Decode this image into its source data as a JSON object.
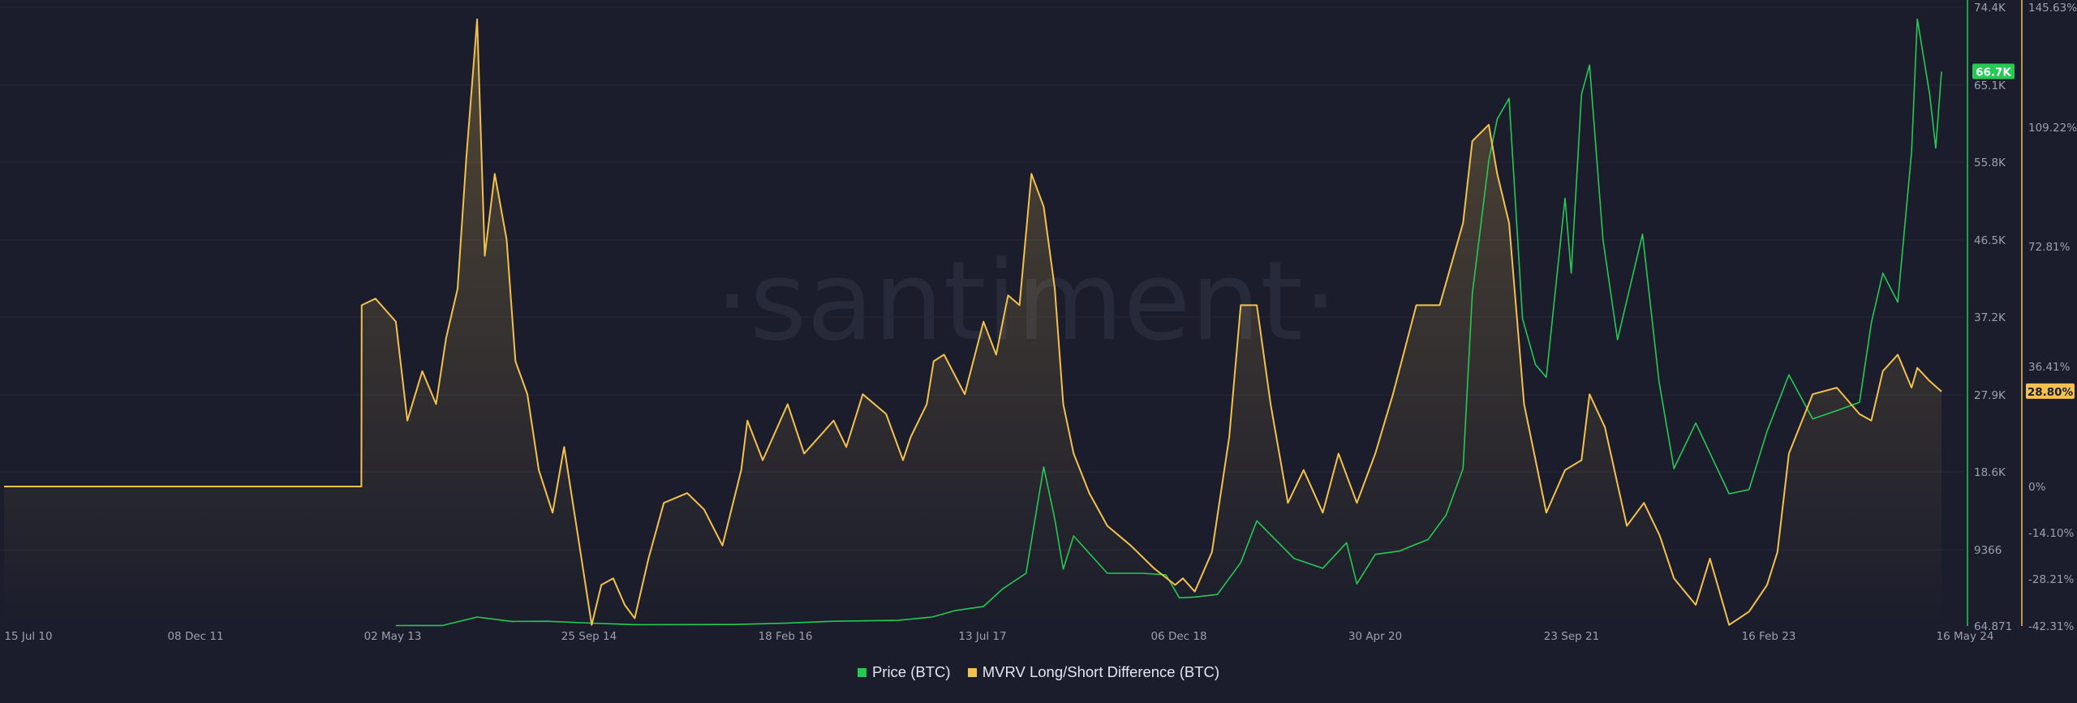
{
  "watermark": "·santiment·",
  "colors": {
    "price": "#26c953",
    "mvrv": "#f2c14e",
    "background": "#1b1d2c",
    "grid": "#252838",
    "price_badge_text": "#1b1d2c"
  },
  "badges": {
    "price": "66.7K",
    "mvrv": "28.80%"
  },
  "legend": [
    {
      "label": "Price (BTC)",
      "color": "#26c953"
    },
    {
      "label": "MVRV Long/Short Difference (BTC)",
      "color": "#f2c14e"
    }
  ],
  "chart_data": {
    "type": "line",
    "x_axis": {
      "ticks": [
        "15 Jul 10",
        "08 Dec 11",
        "02 May 13",
        "25 Sep 14",
        "18 Feb 16",
        "13 Jul 17",
        "06 Dec 18",
        "30 Apr 20",
        "23 Sep 21",
        "16 Feb 23",
        "16 May 24"
      ]
    },
    "y_axis_price": {
      "ticks": [
        "74.4K",
        "65.1K",
        "55.8K",
        "46.5K",
        "37.2K",
        "27.9K",
        "18.6K",
        "9366",
        "64.871"
      ],
      "min": 64.871,
      "max": 74400
    },
    "y_axis_mvrv": {
      "ticks": [
        "145.63%",
        "109.22%",
        "72.81%",
        "36.41%",
        "0%",
        "-14.10%",
        "-28.21%",
        "-42.31%"
      ]
    },
    "series": [
      {
        "name": "Price (BTC)",
        "axis": "price",
        "x": [
          "2013-05-02",
          "2013-09-01",
          "2013-11-30",
          "2014-03-01",
          "2014-06-01",
          "2014-09-25",
          "2015-01-15",
          "2015-06-01",
          "2015-10-01",
          "2016-02-18",
          "2016-06-15",
          "2016-12-01",
          "2017-03-01",
          "2017-05-01",
          "2017-07-13",
          "2017-09-01",
          "2017-11-01",
          "2017-12-17",
          "2018-01-15",
          "2018-02-06",
          "2018-03-05",
          "2018-06-01",
          "2018-09-01",
          "2018-11-01",
          "2018-12-06",
          "2019-01-15",
          "2019-03-15",
          "2019-05-15",
          "2019-06-26",
          "2019-08-15",
          "2019-10-01",
          "2019-12-15",
          "2020-02-15",
          "2020-03-13",
          "2020-04-30",
          "2020-07-01",
          "2020-09-15",
          "2020-11-01",
          "2020-12-15",
          "2021-01-08",
          "2021-02-20",
          "2021-03-14",
          "2021-04-14",
          "2021-05-19",
          "2021-06-22",
          "2021-07-20",
          "2021-09-07",
          "2021-09-23",
          "2021-10-20",
          "2021-11-10",
          "2021-12-15",
          "2022-01-22",
          "2022-03-28",
          "2022-05-10",
          "2022-06-18",
          "2022-08-14",
          "2022-11-09",
          "2022-12-31",
          "2023-02-16",
          "2023-04-14",
          "2023-06-15",
          "2023-08-17",
          "2023-10-15",
          "2023-11-15",
          "2023-12-15",
          "2024-01-23",
          "2024-02-28",
          "2024-03-14",
          "2024-04-15",
          "2024-05-01",
          "2024-05-16"
        ],
        "values": [
          115,
          125,
          1150,
          620,
          640,
          410,
          220,
          230,
          240,
          420,
          640,
          750,
          1150,
          1950,
          2450,
          4600,
          6500,
          19200,
          13000,
          7000,
          11000,
          6500,
          6500,
          6300,
          3500,
          3600,
          3900,
          7800,
          12800,
          10500,
          8300,
          7100,
          10200,
          5200,
          8800,
          9200,
          10600,
          13500,
          19000,
          40000,
          56000,
          61000,
          63500,
          37000,
          31500,
          30000,
          51500,
          42500,
          64000,
          67500,
          46500,
          34500,
          47200,
          29500,
          19000,
          24500,
          16000,
          16500,
          23500,
          30300,
          25000,
          26000,
          27000,
          36500,
          42500,
          39000,
          57000,
          73000,
          64000,
          57500,
          66700
        ]
      },
      {
        "name": "MVRV Long/Short Difference (BTC)",
        "axis": "mvrv",
        "x": [
          "2010-07-15",
          "2013-02-01",
          "2013-02-02",
          "2013-03-10",
          "2013-05-02",
          "2013-06-01",
          "2013-07-10",
          "2013-08-15",
          "2013-09-10",
          "2013-10-10",
          "2013-11-02",
          "2013-11-30",
          "2013-12-20",
          "2014-01-15",
          "2014-02-15",
          "2014-03-10",
          "2014-04-10",
          "2014-05-10",
          "2014-06-15",
          "2014-07-15",
          "2014-08-20",
          "2014-09-25",
          "2014-10-20",
          "2014-11-20",
          "2014-12-20",
          "2015-01-15",
          "2015-02-20",
          "2015-04-01",
          "2015-06-01",
          "2015-07-15",
          "2015-09-01",
          "2015-10-20",
          "2015-11-05",
          "2015-12-15",
          "2016-02-18",
          "2016-04-01",
          "2016-06-17",
          "2016-07-20",
          "2016-09-01",
          "2016-11-01",
          "2016-12-15",
          "2017-01-04",
          "2017-02-15",
          "2017-03-05",
          "2017-04-01",
          "2017-05-25",
          "2017-07-13",
          "2017-08-15",
          "2017-09-15",
          "2017-10-15",
          "2017-11-15",
          "2017-12-17",
          "2018-01-15",
          "2018-02-06",
          "2018-03-05",
          "2018-04-15",
          "2018-06-01",
          "2018-08-01",
          "2018-10-01",
          "2018-11-25",
          "2018-12-15",
          "2019-01-15",
          "2019-03-01",
          "2019-04-15",
          "2019-05-15",
          "2019-06-26",
          "2019-08-01",
          "2019-09-15",
          "2019-10-26",
          "2019-12-15",
          "2020-01-25",
          "2020-03-13",
          "2020-04-30",
          "2020-06-15",
          "2020-08-15",
          "2020-10-15",
          "2020-12-15",
          "2021-01-08",
          "2021-02-20",
          "2021-03-14",
          "2021-04-14",
          "2021-05-23",
          "2021-07-20",
          "2021-09-07",
          "2021-10-20",
          "2021-11-10",
          "2021-12-20",
          "2022-02-15",
          "2022-04-01",
          "2022-05-12",
          "2022-06-18",
          "2022-08-14",
          "2022-09-20",
          "2022-11-09",
          "2022-12-31",
          "2023-02-16",
          "2023-03-15",
          "2023-04-14",
          "2023-06-15",
          "2023-08-17",
          "2023-10-15",
          "2023-11-15",
          "2023-12-15",
          "2024-01-23",
          "2024-02-28",
          "2024-03-14",
          "2024-04-15",
          "2024-05-16"
        ],
        "values": [
          0,
          0,
          55,
          57,
          50,
          20,
          35,
          25,
          45,
          60,
          100,
          142,
          70,
          95,
          75,
          38,
          28,
          5,
          -8,
          12,
          -15,
          -42,
          -30,
          -28,
          -36,
          -40,
          -22,
          -5,
          -2,
          -7,
          -18,
          5,
          20,
          8,
          25,
          10,
          20,
          12,
          28,
          22,
          8,
          15,
          25,
          38,
          40,
          28,
          50,
          40,
          58,
          55,
          95,
          85,
          60,
          25,
          10,
          -2,
          -12,
          -18,
          -25,
          -30,
          -28,
          -32,
          -20,
          15,
          55,
          55,
          25,
          -5,
          5,
          -8,
          10,
          -5,
          10,
          28,
          55,
          55,
          80,
          105,
          110,
          95,
          80,
          25,
          -8,
          5,
          8,
          28,
          18,
          -12,
          -5,
          -15,
          -28,
          -36,
          -22,
          -42,
          -38,
          -30,
          -20,
          10,
          28,
          30,
          22,
          20,
          35,
          40,
          30,
          36,
          32,
          28.8
        ]
      }
    ]
  }
}
